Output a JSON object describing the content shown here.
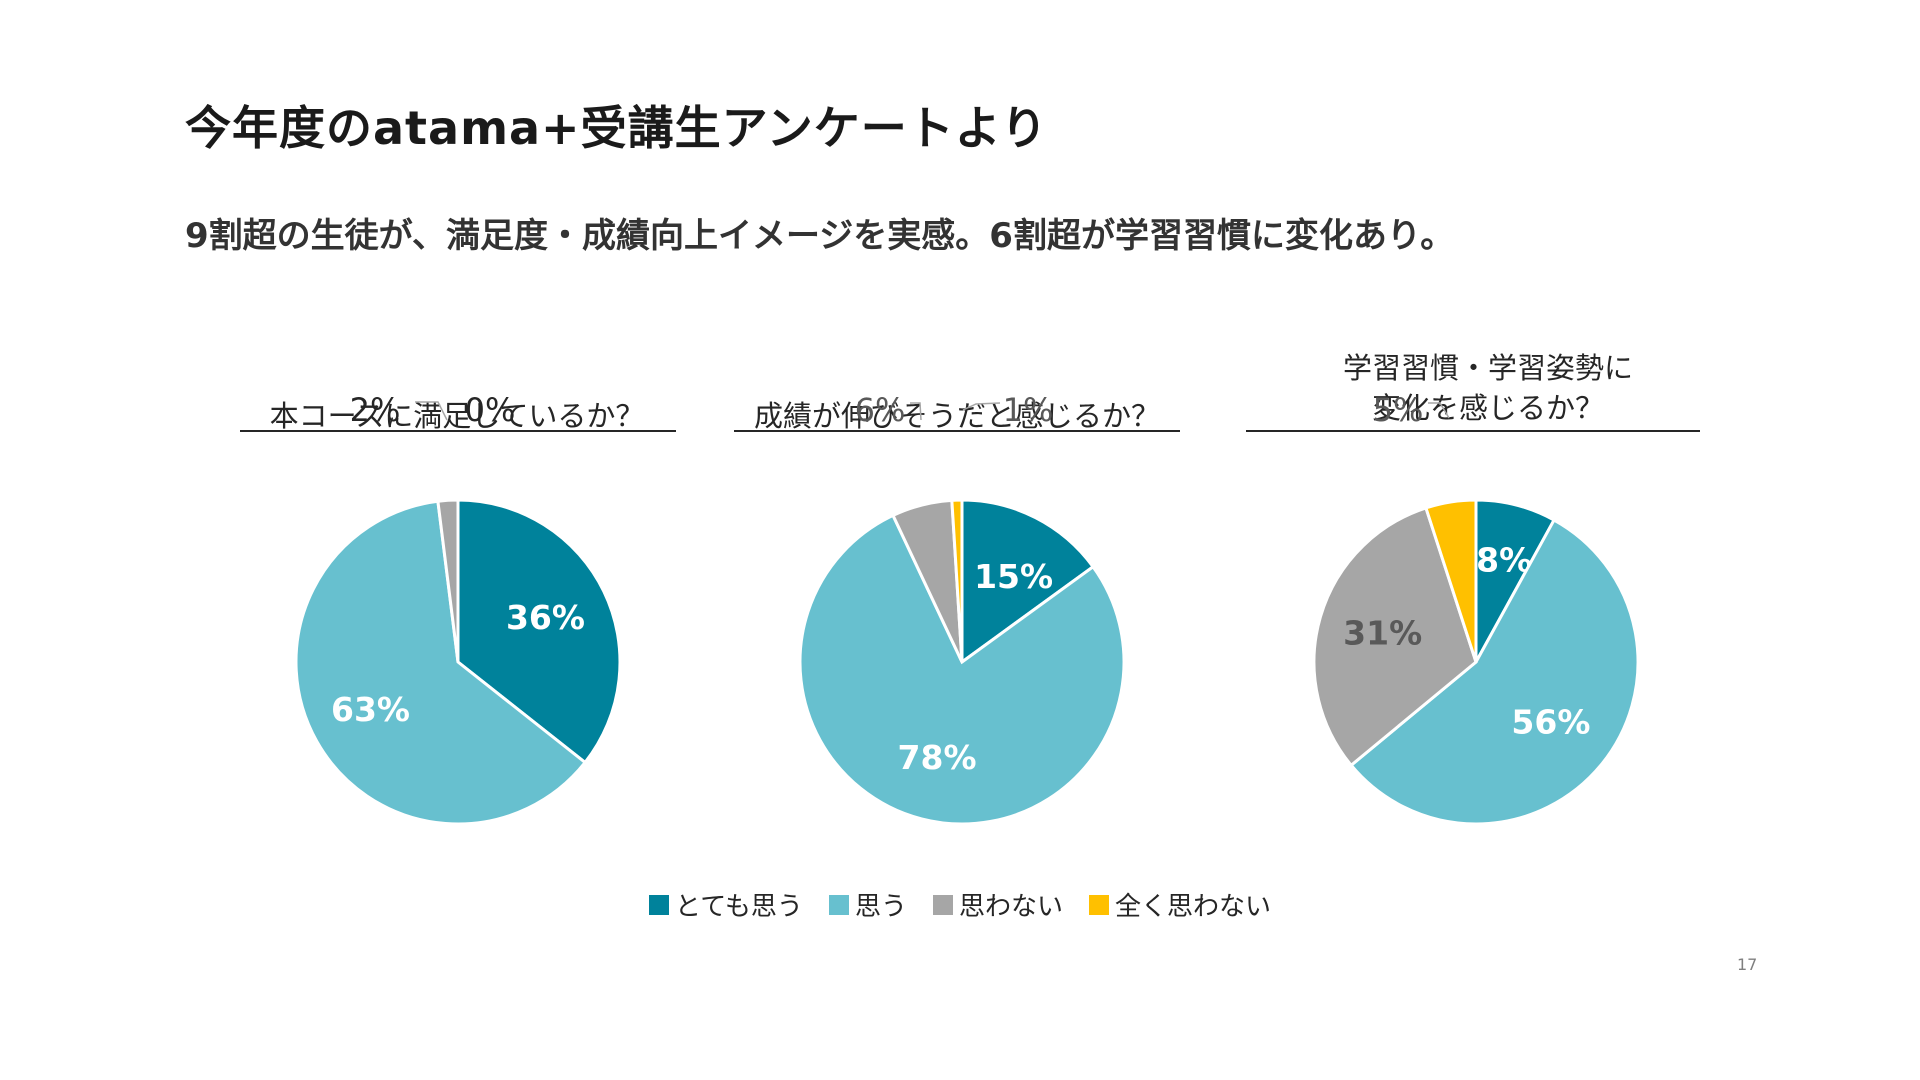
{
  "title": "今年度のatama+受講生アンケートより",
  "subtitle": "9割超の生徒が、満足度・成績向上イメージを実感。6割超が学習習慣に変化あり。",
  "colors": {
    "very_agree": "#00829B",
    "agree": "#67C0CF",
    "disagree": "#A6A6A6",
    "strongly_disagree": "#FFC000"
  },
  "legend": [
    "とても思う",
    "思う",
    "思わない",
    "全く思わない"
  ],
  "page_number": "17",
  "chart_data": [
    {
      "type": "pie",
      "title_lines": [
        "本コースに満足しているか？"
      ],
      "categories": [
        "とても思う",
        "思う",
        "思わない",
        "全く思わない"
      ],
      "values": [
        36,
        63,
        2,
        0
      ],
      "labels": [
        "36%",
        "63%",
        "2%",
        "0%"
      ]
    },
    {
      "type": "pie",
      "title_lines": [
        "成績が伸びそうだと感じるか？"
      ],
      "categories": [
        "とても思う",
        "思う",
        "思わない",
        "全く思わない"
      ],
      "values": [
        15,
        78,
        6,
        1
      ],
      "labels": [
        "15%",
        "78%",
        "6%",
        "1%"
      ]
    },
    {
      "type": "pie",
      "title_lines": [
        "学習習慣・学習姿勢に",
        "変化を感じるか？"
      ],
      "categories": [
        "とても思う",
        "思う",
        "思わない",
        "全く思わない"
      ],
      "values": [
        8,
        56,
        31,
        5
      ],
      "labels": [
        "8%",
        "56%",
        "31%",
        "5%"
      ]
    }
  ]
}
